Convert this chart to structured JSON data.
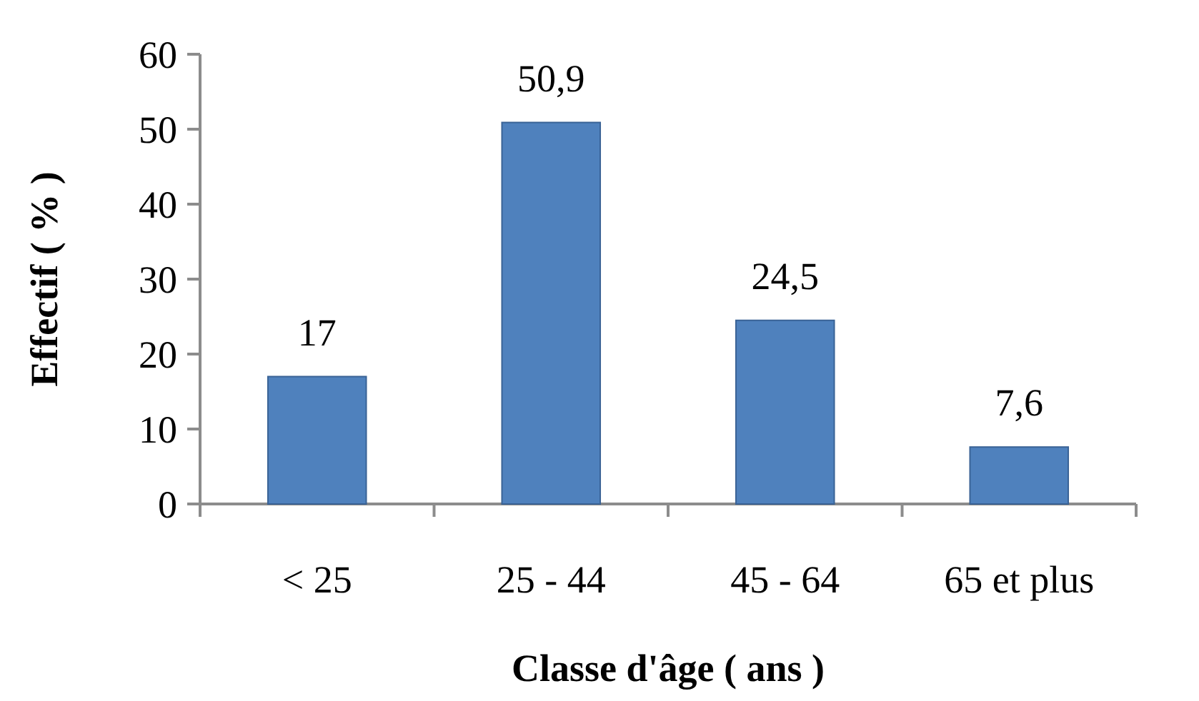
{
  "chart_data": {
    "type": "bar",
    "xlabel": "Classe d'âge ( ans )",
    "ylabel": "Effectif ( % )",
    "categories": [
      "< 25",
      "25 - 44",
      "45 - 64",
      "65 et plus"
    ],
    "values": [
      17,
      50.9,
      24.5,
      7.6
    ],
    "value_labels": [
      "17",
      "50,9",
      "24,5",
      "7,6"
    ],
    "color": "#4f81bd",
    "ylim": [
      0,
      60
    ],
    "yticks": [
      0,
      10,
      20,
      30,
      40,
      50,
      60
    ]
  }
}
